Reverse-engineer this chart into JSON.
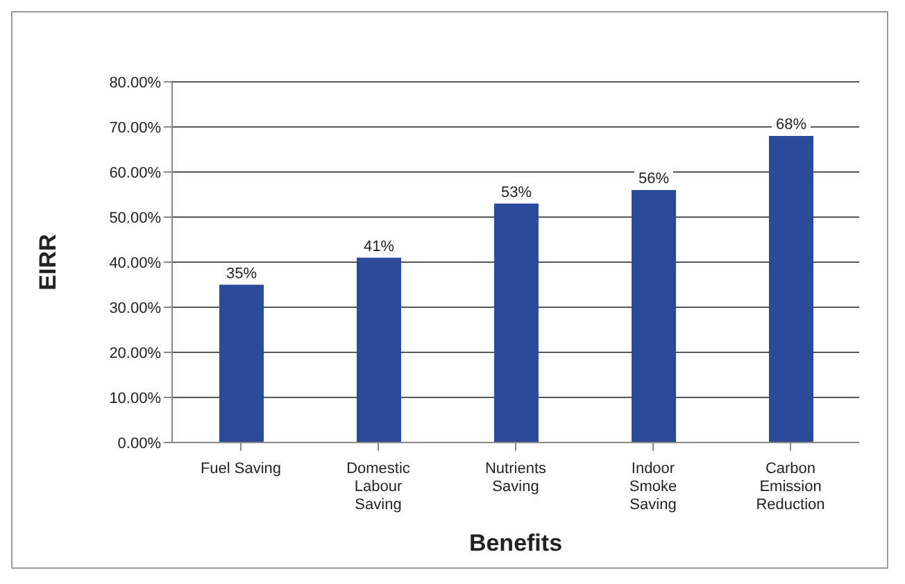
{
  "chart_data": {
    "type": "bar",
    "xlabel": "Benefits",
    "ylabel": "EIRR",
    "categories": [
      "Fuel Saving",
      "Domestic Labour Saving",
      "Nutrients Saving",
      "Indoor Smoke Saving",
      "Carbon Emission Reduction"
    ],
    "values": [
      35,
      41,
      53,
      56,
      68
    ],
    "color": "#2b4a9a",
    "value_labels": [
      "35%",
      "41%",
      "53%",
      "56%",
      "68%"
    ],
    "ylim": [
      0,
      80
    ],
    "yticks": [
      {
        "value": 0,
        "label": "0.00%"
      },
      {
        "value": 10,
        "label": "10.00%"
      },
      {
        "value": 20,
        "label": "20.00%"
      },
      {
        "value": 30,
        "label": "30.00%"
      },
      {
        "value": 40,
        "label": "40.00%"
      },
      {
        "value": 50,
        "label": "50.00%"
      },
      {
        "value": 60,
        "label": "60.00%"
      },
      {
        "value": 70,
        "label": "70.00%"
      },
      {
        "value": 80,
        "label": "80.00%"
      }
    ],
    "grid": "y"
  }
}
